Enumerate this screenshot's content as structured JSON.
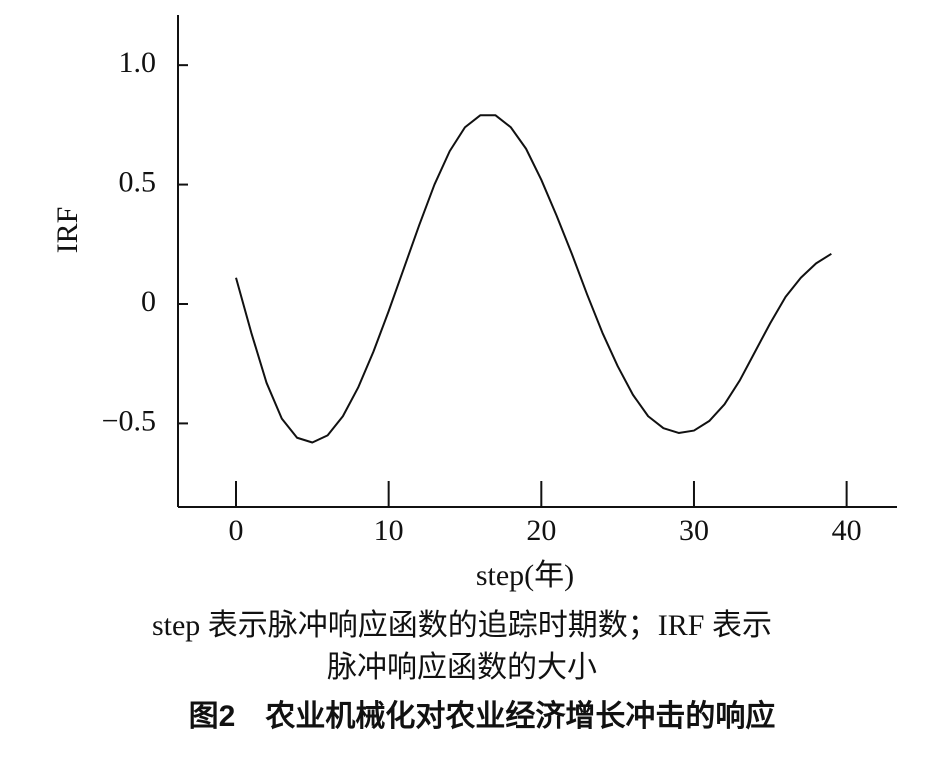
{
  "chart_data": {
    "type": "line",
    "x_label": "step(年)",
    "y_label": "IRF",
    "notes": [
      "step 表示脉冲响应函数的追踪时期数；IRF 表示",
      "脉冲响应函数的大小"
    ],
    "caption": "图2　农业机械化对农业经济增长冲击的响应",
    "x": [
      0,
      1,
      2,
      3,
      4,
      5,
      6,
      7,
      8,
      9,
      10,
      11,
      12,
      13,
      14,
      15,
      16,
      17,
      18,
      19,
      20,
      21,
      22,
      23,
      24,
      25,
      26,
      27,
      28,
      29,
      30,
      31,
      32,
      33,
      34,
      35,
      36,
      37,
      38,
      39
    ],
    "series": [
      {
        "color": "#111111",
        "values": [
          0.11,
          -0.12,
          -0.33,
          -0.48,
          -0.56,
          -0.58,
          -0.55,
          -0.47,
          -0.35,
          -0.2,
          -0.03,
          0.15,
          0.33,
          0.5,
          0.64,
          0.74,
          0.79,
          0.79,
          0.74,
          0.65,
          0.52,
          0.37,
          0.21,
          0.04,
          -0.12,
          -0.26,
          -0.38,
          -0.47,
          -0.52,
          -0.54,
          -0.53,
          -0.49,
          -0.42,
          -0.32,
          -0.2,
          -0.08,
          0.03,
          0.11,
          0.17,
          0.21
        ]
      }
    ],
    "xlim": [
      -3.8,
      43.3
    ],
    "ylim": [
      -0.85,
      1.21
    ],
    "xticks": [
      0,
      10,
      20,
      30,
      40
    ],
    "yticks": [
      {
        "value": 1,
        "label": "1.0"
      },
      0.5,
      0,
      {
        "value": -0.5,
        "label": "−0.5"
      }
    ]
  }
}
